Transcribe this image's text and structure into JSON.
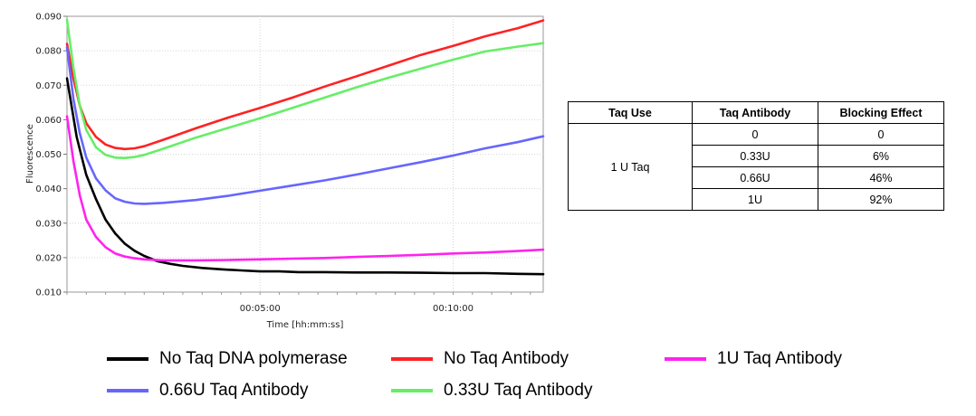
{
  "chart_data": {
    "type": "line",
    "xlabel": "Time [hh:mm:ss]",
    "ylabel": "Fluorescence",
    "xlim": [
      0,
      740
    ],
    "ylim": [
      0.01,
      0.09
    ],
    "yticks": [
      "0.010",
      "0.020",
      "0.030",
      "0.040",
      "0.050",
      "0.060",
      "0.070",
      "0.080",
      "0.090"
    ],
    "xticks": [
      {
        "t": 300,
        "label": "00:05:00"
      },
      {
        "t": 600,
        "label": "00:10:00"
      }
    ],
    "grid": true,
    "legend_position": "bottom",
    "series": [
      {
        "name": "No Taq DNA polymerase",
        "color": "#000000",
        "x": [
          0,
          15,
          30,
          45,
          60,
          75,
          90,
          105,
          120,
          140,
          160,
          180,
          210,
          240,
          270,
          300,
          330,
          360,
          400,
          450,
          500,
          550,
          600,
          650,
          700,
          740
        ],
        "y": [
          0.072,
          0.055,
          0.044,
          0.037,
          0.031,
          0.027,
          0.024,
          0.022,
          0.0205,
          0.019,
          0.0182,
          0.0176,
          0.017,
          0.0166,
          0.0163,
          0.016,
          0.016,
          0.0158,
          0.0158,
          0.0157,
          0.0157,
          0.0156,
          0.0155,
          0.0155,
          0.0153,
          0.0152
        ]
      },
      {
        "name": "No Taq Antibody",
        "color": "#ff2222",
        "x": [
          0,
          10,
          20,
          30,
          45,
          60,
          75,
          90,
          105,
          120,
          150,
          200,
          250,
          300,
          350,
          400,
          450,
          500,
          550,
          600,
          650,
          700,
          740
        ],
        "y": [
          0.082,
          0.072,
          0.064,
          0.059,
          0.055,
          0.0528,
          0.0518,
          0.0515,
          0.0517,
          0.0523,
          0.0542,
          0.0575,
          0.0606,
          0.0634,
          0.0664,
          0.0696,
          0.0726,
          0.0757,
          0.0788,
          0.0814,
          0.0842,
          0.0865,
          0.0888
        ]
      },
      {
        "name": "1U Taq Antibody",
        "color": "#ff22ee",
        "x": [
          0,
          10,
          20,
          30,
          45,
          60,
          75,
          90,
          105,
          120,
          150,
          200,
          250,
          300,
          350,
          400,
          450,
          500,
          550,
          600,
          650,
          700,
          740
        ],
        "y": [
          0.061,
          0.048,
          0.038,
          0.031,
          0.026,
          0.023,
          0.0212,
          0.0203,
          0.0198,
          0.0195,
          0.0192,
          0.0192,
          0.0193,
          0.0195,
          0.0197,
          0.0199,
          0.0202,
          0.0205,
          0.0208,
          0.0212,
          0.0215,
          0.0219,
          0.0223
        ]
      },
      {
        "name": "0.66U Taq Antibody",
        "color": "#6666ff",
        "x": [
          0,
          10,
          20,
          30,
          45,
          60,
          75,
          90,
          105,
          120,
          150,
          200,
          250,
          300,
          350,
          400,
          450,
          500,
          550,
          600,
          650,
          700,
          740
        ],
        "y": [
          0.081,
          0.066,
          0.056,
          0.049,
          0.043,
          0.0395,
          0.0372,
          0.0362,
          0.0357,
          0.0356,
          0.0359,
          0.0367,
          0.0379,
          0.0394,
          0.0409,
          0.0424,
          0.0441,
          0.0459,
          0.0477,
          0.0496,
          0.0517,
          0.0535,
          0.0552
        ]
      },
      {
        "name": "0.33U Taq Antibody",
        "color": "#66ee66",
        "x": [
          0,
          10,
          20,
          30,
          45,
          60,
          75,
          90,
          105,
          120,
          150,
          200,
          250,
          300,
          350,
          400,
          450,
          500,
          550,
          600,
          650,
          700,
          740
        ],
        "y": [
          0.089,
          0.075,
          0.064,
          0.057,
          0.052,
          0.0498,
          0.049,
          0.0489,
          0.0492,
          0.0498,
          0.0516,
          0.0548,
          0.0576,
          0.0604,
          0.0634,
          0.0664,
          0.0694,
          0.0722,
          0.0748,
          0.0774,
          0.0798,
          0.0812,
          0.0822
        ]
      }
    ]
  },
  "table": {
    "headers": [
      "Taq Use",
      "Taq Antibody",
      "Blocking Effect"
    ],
    "group_label": "1 U Taq",
    "rows": [
      {
        "antibody": "0",
        "effect": "0"
      },
      {
        "antibody": "0.33U",
        "effect": "6%"
      },
      {
        "antibody": "0.66U",
        "effect": "46%"
      },
      {
        "antibody": "1U",
        "effect": "92%"
      }
    ]
  },
  "legend": [
    {
      "label": "No Taq DNA polymerase",
      "color": "#000000"
    },
    {
      "label": "No Taq Antibody",
      "color": "#ff2222"
    },
    {
      "label": "1U Taq Antibody",
      "color": "#ff22ee"
    },
    {
      "label": "0.66U Taq Antibody",
      "color": "#6666ff"
    },
    {
      "label": "0.33U Taq Antibody",
      "color": "#66ee66"
    }
  ]
}
